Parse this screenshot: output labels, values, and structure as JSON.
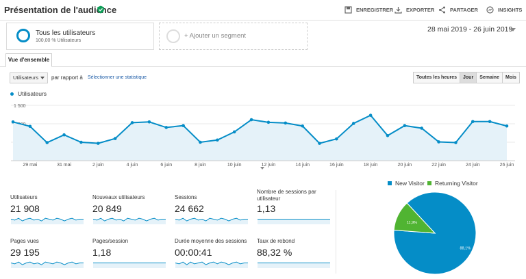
{
  "header": {
    "title": "Présentation de l'audience",
    "actions": {
      "save": "ENREGISTRER",
      "export": "EXPORTER",
      "share": "PARTAGER",
      "insights": "INSIGHTS"
    }
  },
  "segments": {
    "all_users": "Tous les utilisateurs",
    "all_users_sub": "100,00 % Utilisateurs",
    "add_segment": "+ Ajouter un segment"
  },
  "date_range": "28 mai 2019 - 26 juin 2019",
  "tabs": {
    "overview": "Vue d'ensemble"
  },
  "toolbar": {
    "metric_select": "Utilisateurs",
    "compare_label": "par rapport à",
    "select_stat": "Sélectionner une statistique",
    "periods": [
      "Toutes les heures",
      "Jour",
      "Semaine",
      "Mois"
    ],
    "active_period": "Jour"
  },
  "colors": {
    "accent": "#058dc7",
    "fill": "#e5f2f9",
    "returning": "#50b432"
  },
  "chart_data": [
    {
      "type": "area",
      "series": [
        {
          "name": "Utilisateurs",
          "values": [
            1050,
            930,
            490,
            700,
            500,
            470,
            600,
            1030,
            1050,
            900,
            950,
            500,
            560,
            780,
            1110,
            1040,
            1020,
            940,
            470,
            590,
            1010,
            1230,
            680,
            950,
            880,
            510,
            490,
            1060,
            1060,
            940
          ]
        }
      ],
      "x": [
        "28 mai",
        "29 mai",
        "30 mai",
        "31 mai",
        "1 juin",
        "2 juin",
        "3 juin",
        "4 juin",
        "5 juin",
        "6 juin",
        "7 juin",
        "8 juin",
        "9 juin",
        "10 juin",
        "11 juin",
        "12 juin",
        "13 juin",
        "14 juin",
        "15 juin",
        "16 juin",
        "17 juin",
        "18 juin",
        "19 juin",
        "20 juin",
        "21 juin",
        "22 juin",
        "23 juin",
        "24 juin",
        "25 juin",
        "26 juin"
      ],
      "x_tick_labels": [
        "29 mai",
        "31 mai",
        "2 juin",
        "4 juin",
        "6 juin",
        "8 juin",
        "10 juin",
        "12 juin",
        "14 juin",
        "16 juin",
        "18 juin",
        "20 juin",
        "22 juin",
        "24 juin",
        "26 juin"
      ],
      "y_tick_labels": [
        "500",
        "1 000",
        "1 500"
      ],
      "y_ticks": [
        500,
        1000,
        1500
      ],
      "ylim": [
        0,
        1500
      ],
      "grid": true
    },
    {
      "type": "pie",
      "series": [
        {
          "name": "",
          "values": [
            88.1,
            11.9
          ]
        }
      ],
      "categories": [
        "New Visitor",
        "Returning Visitor"
      ],
      "slice_labels": [
        "88,1%",
        "11,9%"
      ],
      "legend": "top"
    }
  ],
  "metrics": [
    {
      "label": "Utilisateurs",
      "value": "21 908",
      "spark": [
        5,
        4,
        6,
        3,
        5,
        6,
        4,
        5,
        3,
        6,
        5,
        4,
        6,
        5,
        3,
        5,
        6,
        4,
        5,
        5
      ]
    },
    {
      "label": "Nouveaux utilisateurs",
      "value": "20 849",
      "spark": [
        5,
        4,
        6,
        3,
        5,
        6,
        4,
        5,
        3,
        6,
        5,
        4,
        6,
        5,
        3,
        5,
        6,
        4,
        5,
        5
      ]
    },
    {
      "label": "Sessions",
      "value": "24 662",
      "spark": [
        5,
        4,
        6,
        3,
        5,
        6,
        4,
        5,
        3,
        6,
        5,
        4,
        6,
        5,
        3,
        5,
        6,
        4,
        5,
        5
      ]
    },
    {
      "label": "Nombre de sessions par utilisateur",
      "value": "1,13",
      "spark": [
        5,
        5,
        5,
        5,
        5,
        5,
        5,
        5,
        5,
        5,
        5,
        5,
        5,
        5,
        5,
        5,
        5,
        5,
        5,
        5
      ]
    },
    {
      "label": "Pages vues",
      "value": "29 195",
      "spark": [
        5,
        4,
        6,
        3,
        5,
        6,
        4,
        5,
        3,
        6,
        5,
        4,
        6,
        5,
        3,
        5,
        6,
        4,
        5,
        5
      ]
    },
    {
      "label": "Pages/session",
      "value": "1,18",
      "spark": [
        5,
        5,
        5,
        5,
        5,
        5,
        5,
        5,
        5,
        5,
        5,
        5,
        5,
        5,
        5,
        5,
        5,
        5,
        5,
        5
      ]
    },
    {
      "label": "Durée moyenne des sessions",
      "value": "00:00:41",
      "spark": [
        5,
        4,
        6,
        3,
        6,
        4,
        5,
        6,
        3,
        5,
        6,
        4,
        6,
        5,
        3,
        5,
        6,
        4,
        5,
        5
      ]
    },
    {
      "label": "Taux de rebond",
      "value": "88,32 %",
      "spark": [
        5,
        5,
        5,
        5,
        5,
        5,
        5,
        5,
        5,
        5,
        5,
        5,
        5,
        5,
        5,
        5,
        5,
        5,
        5,
        5
      ]
    }
  ]
}
